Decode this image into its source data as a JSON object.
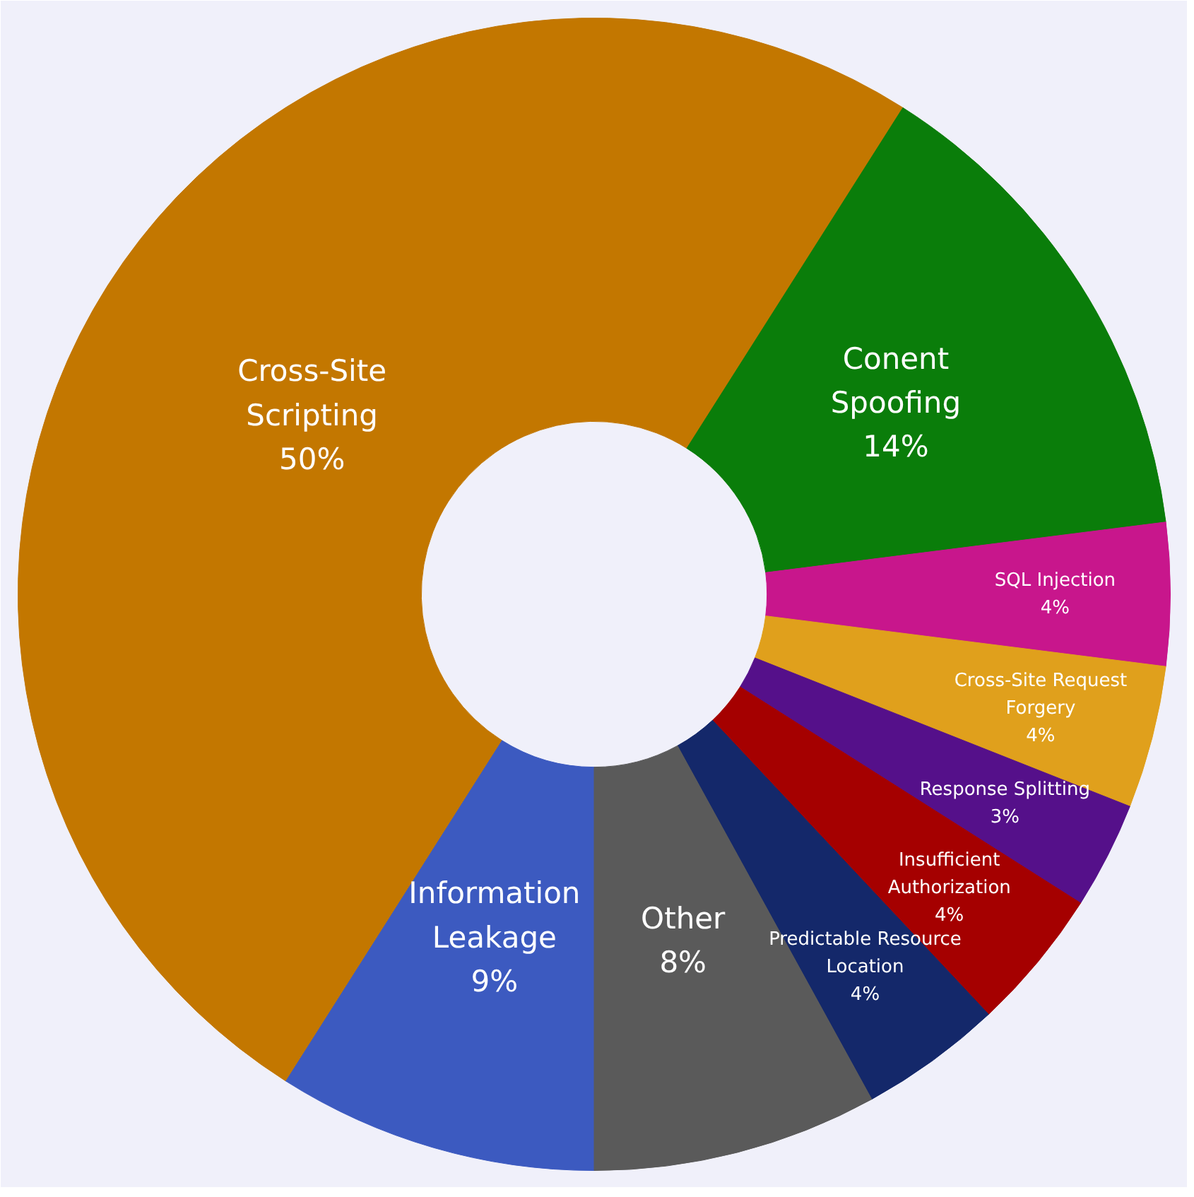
{
  "chart_data": {
    "type": "donut",
    "categories": [
      "Information\nLeakage",
      "Cross-Site\nScripting",
      "Conent\nSpoofing",
      "SQL Injection",
      "Cross-Site Request\nForgery",
      "Response Splitting",
      "Insufficient\nAuthorization",
      "Predictable Resource\nLocation",
      "Other"
    ],
    "values": [
      9,
      50,
      14,
      4,
      4,
      3,
      4,
      4,
      8
    ],
    "value_labels": [
      "9%",
      "50%",
      "14%",
      "4%",
      "4%",
      "3%",
      "4%",
      "4%",
      "8%"
    ],
    "colors": [
      "#3c5ac0",
      "#c37700",
      "#0a7d0a",
      "#c8168c",
      "#e0a01c",
      "#55108a",
      "#a50000",
      "#14286a",
      "#5a5a5a"
    ]
  }
}
